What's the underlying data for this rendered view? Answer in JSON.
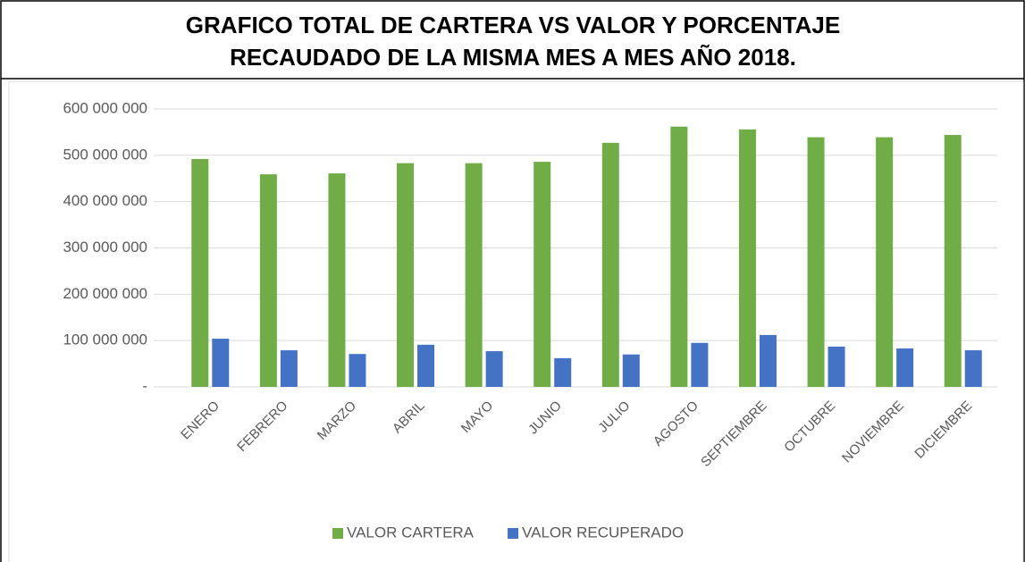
{
  "chart_data": {
    "type": "bar",
    "title": [
      "GRAFICO TOTAL DE CARTERA VS VALOR Y PORCENTAJE",
      "RECAUDADO DE LA MISMA MES A MES AÑO 2018."
    ],
    "categories": [
      "ENERO",
      "FEBRERO",
      "MARZO",
      "ABRIL",
      "MAYO",
      "JUNIO",
      "JULIO",
      "AGOSTO",
      "SEPTIEMBRE",
      "OCTUBRE",
      "NOVIEMBRE",
      "DICIEMBRE"
    ],
    "series": [
      {
        "name": "VALOR CARTERA",
        "color": "#70ad47",
        "values": [
          492000000,
          459000000,
          461000000,
          483000000,
          483000000,
          486000000,
          527000000,
          562000000,
          556000000,
          539000000,
          539000000,
          544000000
        ]
      },
      {
        "name": "VALOR RECUPERADO",
        "color": "#4472c4",
        "values": [
          104000000,
          79000000,
          71000000,
          91000000,
          77000000,
          62000000,
          70000000,
          95000000,
          112000000,
          87000000,
          83000000,
          79000000
        ]
      }
    ],
    "ylim": [
      0,
      600000000
    ],
    "yticks": [
      {
        "value": 0,
        "label": "-"
      },
      {
        "value": 100000000,
        "label": "100 000 000"
      },
      {
        "value": 200000000,
        "label": "200 000 000"
      },
      {
        "value": 300000000,
        "label": "300 000 000"
      },
      {
        "value": 400000000,
        "label": "400 000 000"
      },
      {
        "value": 500000000,
        "label": "500 000 000"
      },
      {
        "value": 600000000,
        "label": "600 000 000"
      }
    ],
    "grid": true,
    "legend": "bottom"
  }
}
